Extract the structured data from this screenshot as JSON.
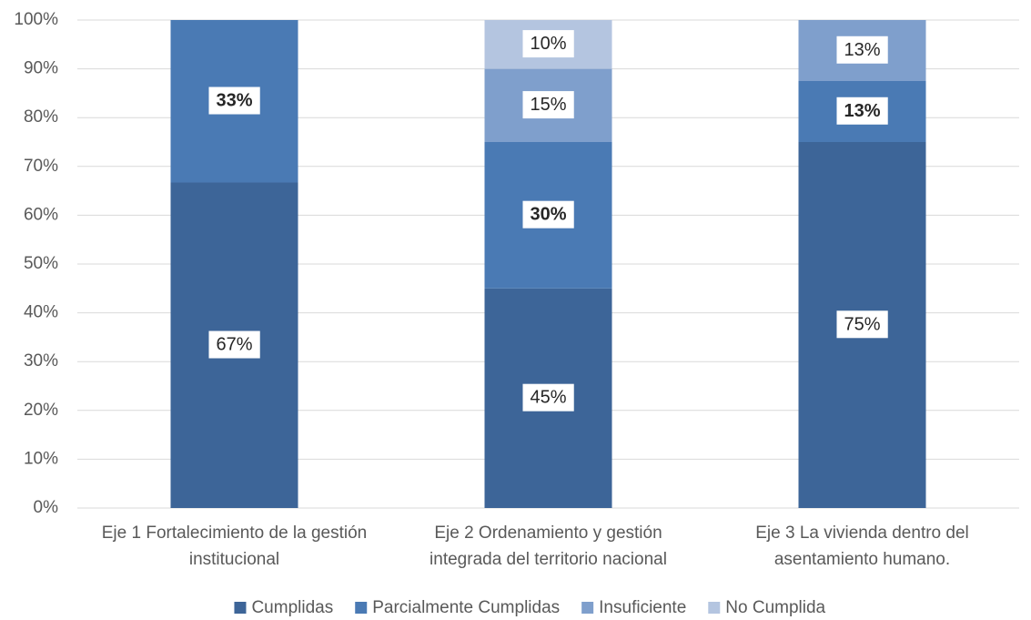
{
  "chart_data": {
    "type": "stacked_bar",
    "categories": [
      "Eje 1 Fortalecimiento de la gestión institucional",
      "Eje 2 Ordenamiento y gestión integrada del territorio nacional",
      "Eje 3 La vivienda dentro del asentamiento humano."
    ],
    "series": [
      {
        "name": "Cumplidas",
        "color": "#3d6598",
        "values": [
          66.7,
          45,
          75
        ],
        "value_labels": [
          "67%",
          "45%",
          "75%"
        ],
        "label_bold": false
      },
      {
        "name": "Parcialmente Cumplidas",
        "color": "#4a7ab4",
        "values": [
          33.3,
          30,
          12.5
        ],
        "value_labels": [
          "33%",
          "30%",
          "13%"
        ],
        "label_bold": true
      },
      {
        "name": "Insuficiente",
        "color": "#7f9fcc",
        "values": [
          null,
          15,
          12.5
        ],
        "value_labels": [
          null,
          "15%",
          "13%"
        ],
        "label_bold": false
      },
      {
        "name": "No Cumplida",
        "color": "#b4c5e0",
        "values": [
          null,
          10,
          null
        ],
        "value_labels": [
          null,
          "10%",
          null
        ],
        "label_bold": false
      }
    ],
    "ylim": [
      0,
      100
    ],
    "yticks": [
      {
        "value": 0,
        "label": "0%"
      },
      {
        "value": 10,
        "label": "10%"
      },
      {
        "value": 20,
        "label": "20%"
      },
      {
        "value": 30,
        "label": "30%"
      },
      {
        "value": 40,
        "label": "40%"
      },
      {
        "value": 50,
        "label": "50%"
      },
      {
        "value": 60,
        "label": "60%"
      },
      {
        "value": 70,
        "label": "70%"
      },
      {
        "value": 80,
        "label": "80%"
      },
      {
        "value": 90,
        "label": "90%"
      },
      {
        "value": 100,
        "label": "100%"
      }
    ],
    "grid": true,
    "legend": "bottom"
  }
}
